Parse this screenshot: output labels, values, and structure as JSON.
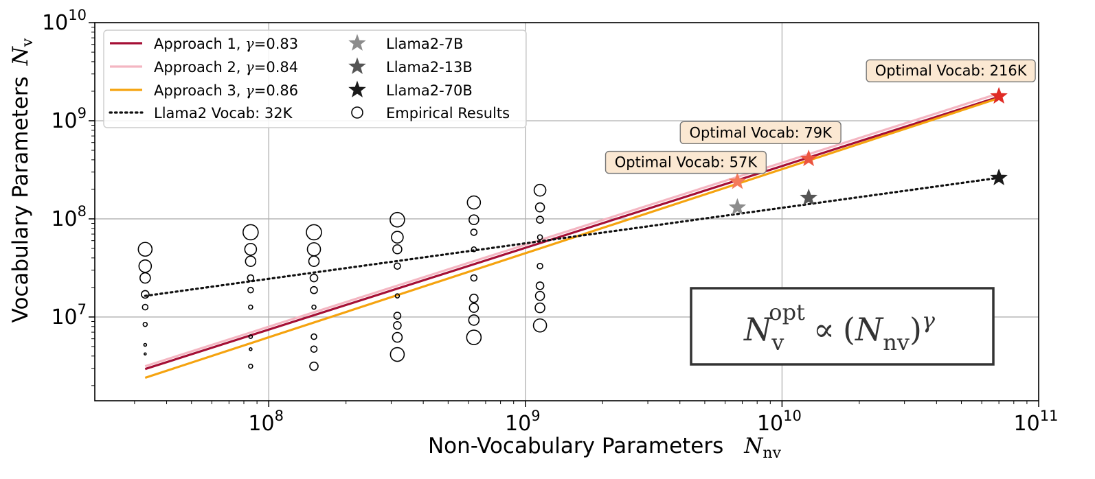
{
  "chart_data": {
    "type": "line",
    "xlabel": "Non-Vocabulary Parameters",
    "xlabel_symbol": "N",
    "xlabel_subscript": "nv",
    "ylabel": "Vocabulary Parameters",
    "ylabel_symbol": "N",
    "ylabel_subscript": "v",
    "x_scale": "log",
    "y_scale": "log",
    "xlim": [
      21000000,
      100000000000
    ],
    "ylim": [
      1400000,
      10000000000
    ],
    "grid": true,
    "x_ticks": [
      {
        "value": 100000000,
        "base": "10",
        "exp": "8"
      },
      {
        "value": 1000000000,
        "base": "10",
        "exp": "9"
      },
      {
        "value": 10000000000,
        "base": "10",
        "exp": "10"
      },
      {
        "value": 100000000000,
        "base": "10",
        "exp": "11"
      }
    ],
    "y_ticks": [
      {
        "value": 10000000,
        "base": "10",
        "exp": "7"
      },
      {
        "value": 100000000,
        "base": "10",
        "exp": "8"
      },
      {
        "value": 1000000000,
        "base": "10",
        "exp": "9"
      },
      {
        "value": 10000000000,
        "base": "10",
        "exp": "10"
      }
    ],
    "legend_position": "top-left",
    "series": [
      {
        "name": "Approach 1, γ=0.83",
        "label_prefix": "Approach 1, ",
        "label_gamma": "γ",
        "label_suffix": "=0.83",
        "kind": "line",
        "color": "#a50f35",
        "x": [
          33000000,
          70000000000
        ],
        "y": [
          2950000,
          1750000000
        ]
      },
      {
        "name": "Approach 2, γ=0.84",
        "label_prefix": "Approach 2, ",
        "label_gamma": "γ",
        "label_suffix": "=0.84",
        "kind": "line",
        "color": "#f4b6c2",
        "x": [
          33000000,
          70000000000
        ],
        "y": [
          3150000,
          1900000000
        ]
      },
      {
        "name": "Approach 3, γ=0.86",
        "label_prefix": "Approach 3, ",
        "label_gamma": "γ",
        "label_suffix": "=0.86",
        "kind": "line",
        "color": "#f5a30f",
        "x": [
          33000000,
          70000000000
        ],
        "y": [
          2400000,
          1700000000
        ]
      },
      {
        "name": "Llama2 Vocab: 32K",
        "label_prefix": "Llama2 Vocab: 32K",
        "kind": "dotted",
        "color": "#111111",
        "x": [
          33000000,
          70000000000
        ],
        "y": [
          16400000,
          262000000
        ]
      }
    ],
    "models": [
      {
        "name": "Llama2-7B",
        "x": 6700000000,
        "y": 131000000,
        "color": "#8c8c8c"
      },
      {
        "name": "Llama2-13B",
        "x": 12700000000,
        "y": 164000000,
        "color": "#555555"
      },
      {
        "name": "Llama2-70B",
        "x": 70000000000,
        "y": 262000000,
        "color": "#1a1a1a"
      }
    ],
    "optimal_points": [
      {
        "label": "Optimal Vocab: 57K",
        "x": 6700000000,
        "y": 240000000,
        "color": "#f47a5a"
      },
      {
        "label": "Optimal Vocab: 79K",
        "x": 12700000000,
        "y": 410000000,
        "color": "#ec5540"
      },
      {
        "label": "Optimal Vocab: 216K",
        "x": 70000000000,
        "y": 1780000000,
        "color": "#e02a24"
      }
    ],
    "empirical_legend": "Empirical Results",
    "empirical": [
      {
        "x": 33000000,
        "points": [
          [
            49000000,
            20
          ],
          [
            33000000,
            18
          ],
          [
            25000000,
            15
          ],
          [
            17000000,
            11
          ],
          [
            12600000,
            8
          ],
          [
            8400000,
            6
          ],
          [
            5200000,
            4
          ],
          [
            4200000,
            3
          ]
        ]
      },
      {
        "x": 85000000,
        "points": [
          [
            73000000,
            22
          ],
          [
            49000000,
            17
          ],
          [
            37000000,
            15
          ],
          [
            25000000,
            9
          ],
          [
            18800000,
            8
          ],
          [
            12600000,
            6
          ],
          [
            6300000,
            5
          ],
          [
            4700000,
            4
          ],
          [
            3150000,
            6
          ]
        ]
      },
      {
        "x": 150000000,
        "points": [
          [
            73000000,
            22
          ],
          [
            49000000,
            19
          ],
          [
            37000000,
            15
          ],
          [
            25000000,
            11
          ],
          [
            18800000,
            10
          ],
          [
            12600000,
            6
          ],
          [
            6300000,
            8
          ],
          [
            4700000,
            9
          ],
          [
            3150000,
            12
          ]
        ]
      },
      {
        "x": 317000000,
        "points": [
          [
            98000000,
            21
          ],
          [
            65000000,
            17
          ],
          [
            49000000,
            13
          ],
          [
            33000000,
            9
          ],
          [
            16400000,
            6
          ],
          [
            10300000,
            10
          ],
          [
            8200000,
            11
          ],
          [
            6200000,
            14
          ],
          [
            4150000,
            20
          ]
        ]
      },
      {
        "x": 630000000,
        "points": [
          [
            147000000,
            19
          ],
          [
            98000000,
            14
          ],
          [
            73000000,
            9
          ],
          [
            49000000,
            7
          ],
          [
            25000000,
            9
          ],
          [
            15500000,
            12
          ],
          [
            12400000,
            13
          ],
          [
            9300000,
            15
          ],
          [
            6200000,
            21
          ]
        ]
      },
      {
        "x": 1140000000,
        "points": [
          [
            196000000,
            17
          ],
          [
            131000000,
            13
          ],
          [
            98000000,
            10
          ],
          [
            65000000,
            7
          ],
          [
            33000000,
            8
          ],
          [
            20800000,
            11
          ],
          [
            16400000,
            13
          ],
          [
            12400000,
            14
          ],
          [
            8200000,
            19
          ]
        ]
      }
    ],
    "formula": {
      "N": "N",
      "v_sub": "v",
      "opt_sup": "opt",
      "prop": "∝",
      "open": "(",
      "nv_sub": "nv",
      "close": ")",
      "gamma_sup": "γ"
    }
  },
  "colors": {
    "axis": "#000000",
    "grid": "#b0b0b0",
    "legend_border": "#cccccc",
    "annotation_fill": "#fbe8d2",
    "annotation_border": "#777777",
    "formula_border": "#333333"
  }
}
